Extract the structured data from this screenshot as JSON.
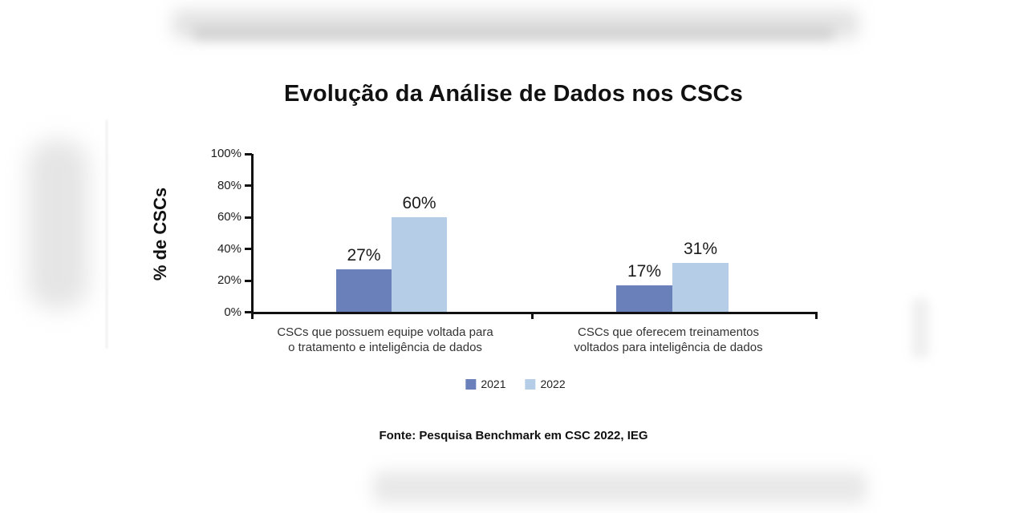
{
  "chart": {
    "title": "Evolução da Análise de Dados nos CSCs",
    "y_axis_title": "% de CSCs",
    "source": "Fonte: Pesquisa Benchmark em CSC 2022, IEG",
    "y_ticks": [
      "100%",
      "80%",
      "60%",
      "40%",
      "20%",
      "0%"
    ],
    "categories": [
      {
        "line1": "CSCs que possuem equipe voltada para",
        "line2": "o tratamento e inteligência de dados"
      },
      {
        "line1": "CSCs que oferecem treinamentos",
        "line2": "voltados para inteligência de dados"
      }
    ],
    "legend": [
      {
        "label": "2021"
      },
      {
        "label": "2022"
      }
    ]
  },
  "chart_data": {
    "type": "bar",
    "title": "Evolução da Análise de Dados nos CSCs",
    "categories": [
      "CSCs que possuem equipe voltada para o tratamento e inteligência de dados",
      "CSCs que oferecem treinamentos voltados para inteligência de dados"
    ],
    "series": [
      {
        "name": "2021",
        "color": "#6a80ba",
        "values": [
          27,
          17
        ]
      },
      {
        "name": "2022",
        "color": "#b6cde7",
        "values": [
          60,
          31
        ]
      }
    ],
    "value_labels": [
      [
        "27%",
        "17%"
      ],
      [
        "60%",
        "31%"
      ]
    ],
    "xlabel": "",
    "ylabel": "% de CSCs",
    "ylim": [
      0,
      100
    ],
    "y_tick_step": 20,
    "grid": false,
    "legend_position": "bottom",
    "source": "Fonte: Pesquisa Benchmark em CSC 2022, IEG"
  },
  "colors": {
    "series_2021": "#6a80ba",
    "series_2022": "#b6cde7",
    "axis": "#111111",
    "text": "#1b1b1b"
  }
}
